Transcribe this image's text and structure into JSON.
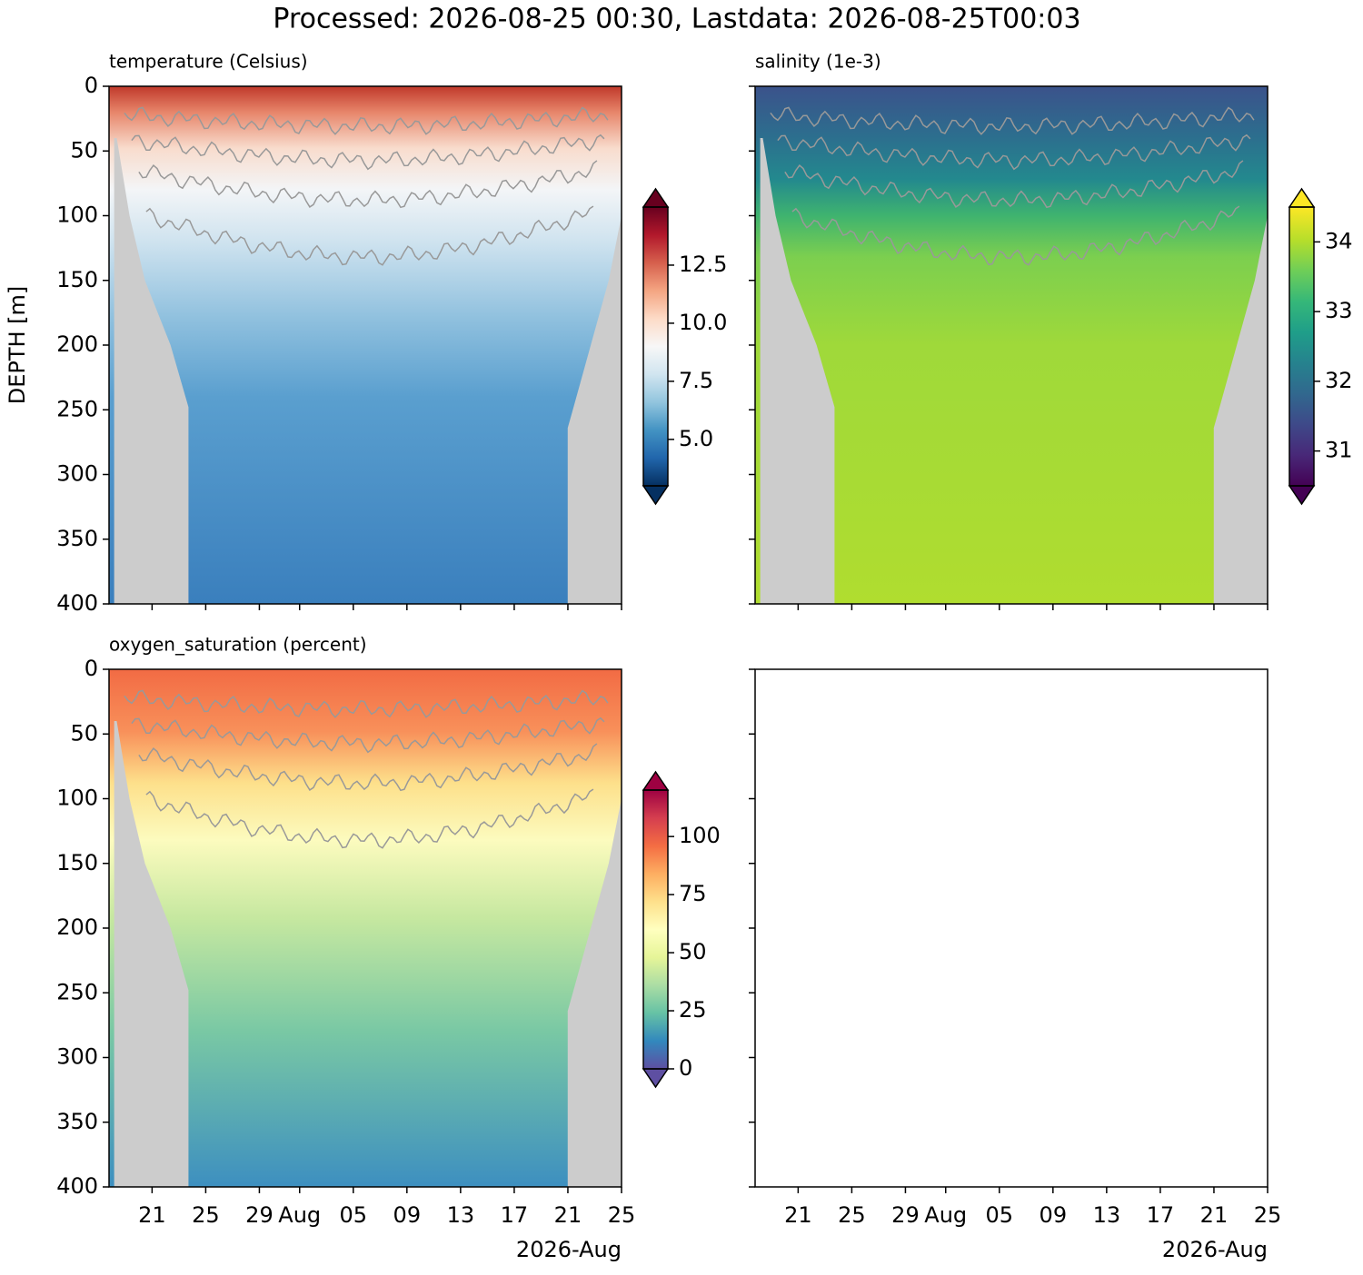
{
  "title": "Processed: 2026-08-25 00:30, Lastdata: 2026-08-25T00:03",
  "axes": {
    "xlim": [
      "2026-07-17T19:00",
      "2026-08-25T00:00"
    ],
    "xticks": [
      {
        "value": "2026-07-21",
        "label": "21"
      },
      {
        "value": "2026-07-25",
        "label": "25"
      },
      {
        "value": "2026-07-29",
        "label": "29"
      },
      {
        "value": "2026-08-01",
        "label": "Aug"
      },
      {
        "value": "2026-08-05",
        "label": "05"
      },
      {
        "value": "2026-08-09",
        "label": "09"
      },
      {
        "value": "2026-08-13",
        "label": "13"
      },
      {
        "value": "2026-08-17",
        "label": "17"
      },
      {
        "value": "2026-08-21",
        "label": "21"
      },
      {
        "value": "2026-08-25",
        "label": "25"
      }
    ],
    "x_offset_label": "2026-Aug",
    "ylabel": "DEPTH [m]",
    "ylim": [
      400,
      0
    ],
    "yticks": [
      0,
      50,
      100,
      150,
      200,
      250,
      300,
      350,
      400
    ]
  },
  "chart_data": [
    {
      "type": "heatmap",
      "title": "temperature (Celsius)",
      "colormap": "RdBu_r",
      "clim": [
        3,
        15
      ],
      "extend": "both",
      "cticks": [
        {
          "value": 5,
          "label": "5.0"
        },
        {
          "value": 7.5,
          "label": "7.5"
        },
        {
          "value": 10,
          "label": "10.0"
        },
        {
          "value": 12.5,
          "label": "12.5"
        }
      ]
    },
    {
      "type": "heatmap",
      "title": "salinity (1e-3)",
      "colormap": "viridis",
      "clim": [
        30.5,
        34.5
      ],
      "extend": "both",
      "cticks": [
        31,
        32,
        33,
        34
      ]
    },
    {
      "type": "heatmap",
      "title": "oxygen_saturation (percent)",
      "colormap": "Spectral_r",
      "clim": [
        0,
        120
      ],
      "extend": "both",
      "cticks": [
        0,
        25,
        50,
        75,
        100
      ]
    }
  ]
}
